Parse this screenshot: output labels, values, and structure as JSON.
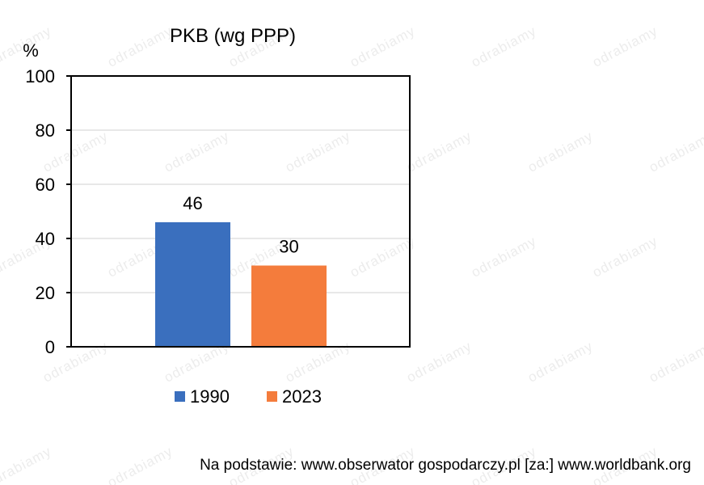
{
  "chart_data": {
    "type": "bar",
    "title": "PKB (wg PPP)",
    "ylabel": "%",
    "xlabel": "",
    "ylim": [
      0,
      100
    ],
    "yticks": [
      0,
      20,
      40,
      60,
      80,
      100
    ],
    "grid": true,
    "legend_position": "bottom",
    "series": [
      {
        "name": "1990",
        "values": [
          46
        ],
        "color": "#3a6fbe"
      },
      {
        "name": "2023",
        "values": [
          30
        ],
        "color": "#f47c3c"
      }
    ]
  },
  "watermark": "odrabiamy",
  "source_note": "Na podstawie: www.obserwator gospodarczy.pl [za:] www.worldbank.org"
}
